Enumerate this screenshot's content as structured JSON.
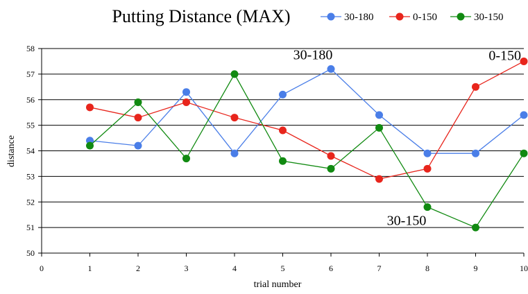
{
  "chart_data": {
    "type": "line",
    "title": "Putting Distance (MAX)",
    "xlabel": "trial number",
    "ylabel": "distance",
    "xlim": [
      0,
      10
    ],
    "ylim": [
      50,
      58
    ],
    "x_ticks": [
      0,
      1,
      2,
      3,
      4,
      5,
      6,
      7,
      8,
      9,
      10
    ],
    "y_ticks": [
      50,
      51,
      52,
      53,
      54,
      55,
      56,
      57,
      58
    ],
    "grid": "horizontal",
    "legend_position": "top-right",
    "x": [
      1,
      2,
      3,
      4,
      5,
      6,
      7,
      8,
      9,
      10
    ],
    "series": [
      {
        "name": "30-180",
        "color": "#4a7ee8",
        "values": [
          54.4,
          54.2,
          56.3,
          53.9,
          56.2,
          57.2,
          55.4,
          53.9,
          53.9,
          55.4
        ]
      },
      {
        "name": "0-150",
        "color": "#e8251c",
        "values": [
          55.7,
          55.3,
          55.9,
          55.3,
          54.8,
          53.8,
          52.9,
          53.3,
          56.5,
          57.5
        ]
      },
      {
        "name": "30-150",
        "color": "#118a11",
        "values": [
          54.2,
          55.9,
          53.7,
          57.0,
          53.6,
          53.3,
          54.9,
          51.8,
          51.0,
          53.9
        ]
      }
    ],
    "annotations": [
      {
        "text": "30-180",
        "x": 6,
        "y": 57.2
      },
      {
        "text": "0-150",
        "x": 10,
        "y": 57.5
      },
      {
        "text": "30-150",
        "x": 8,
        "y": 51.8
      }
    ]
  }
}
